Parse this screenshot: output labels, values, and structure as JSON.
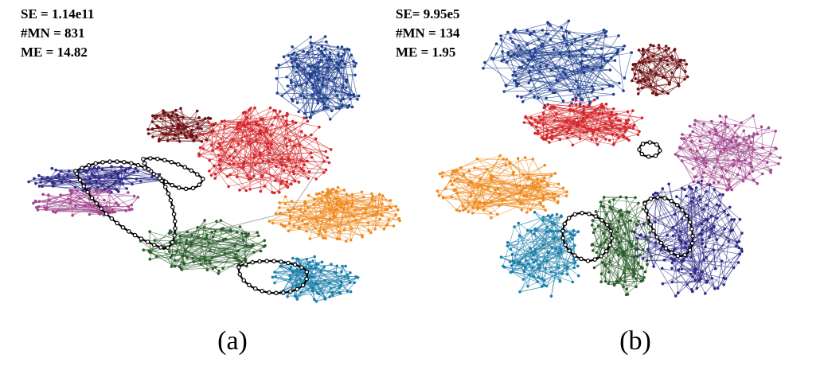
{
  "panels": [
    {
      "id": "a",
      "stats": {
        "se": "SE = 1.14e11",
        "mn": "#MN = 831",
        "me": "ME = 14.82"
      },
      "caption": "(a)",
      "cluster_colors": [
        "#1f3f8f",
        "#6e0f12",
        "#d4262b",
        "#ef8a1e",
        "#2e2a86",
        "#a2468f",
        "#2b5d2b",
        "#1c7fab"
      ]
    },
    {
      "id": "b",
      "stats": {
        "se": "SE= 9.95e5",
        "mn": "#MN = 134",
        "me": "ME = 1.95"
      },
      "caption": "(b)",
      "cluster_colors": [
        "#1f3f8f",
        "#6e0f12",
        "#d4262b",
        "#ef8a1e",
        "#2e2a86",
        "#a2468f",
        "#2b5d2b",
        "#1c7fab"
      ]
    }
  ]
}
